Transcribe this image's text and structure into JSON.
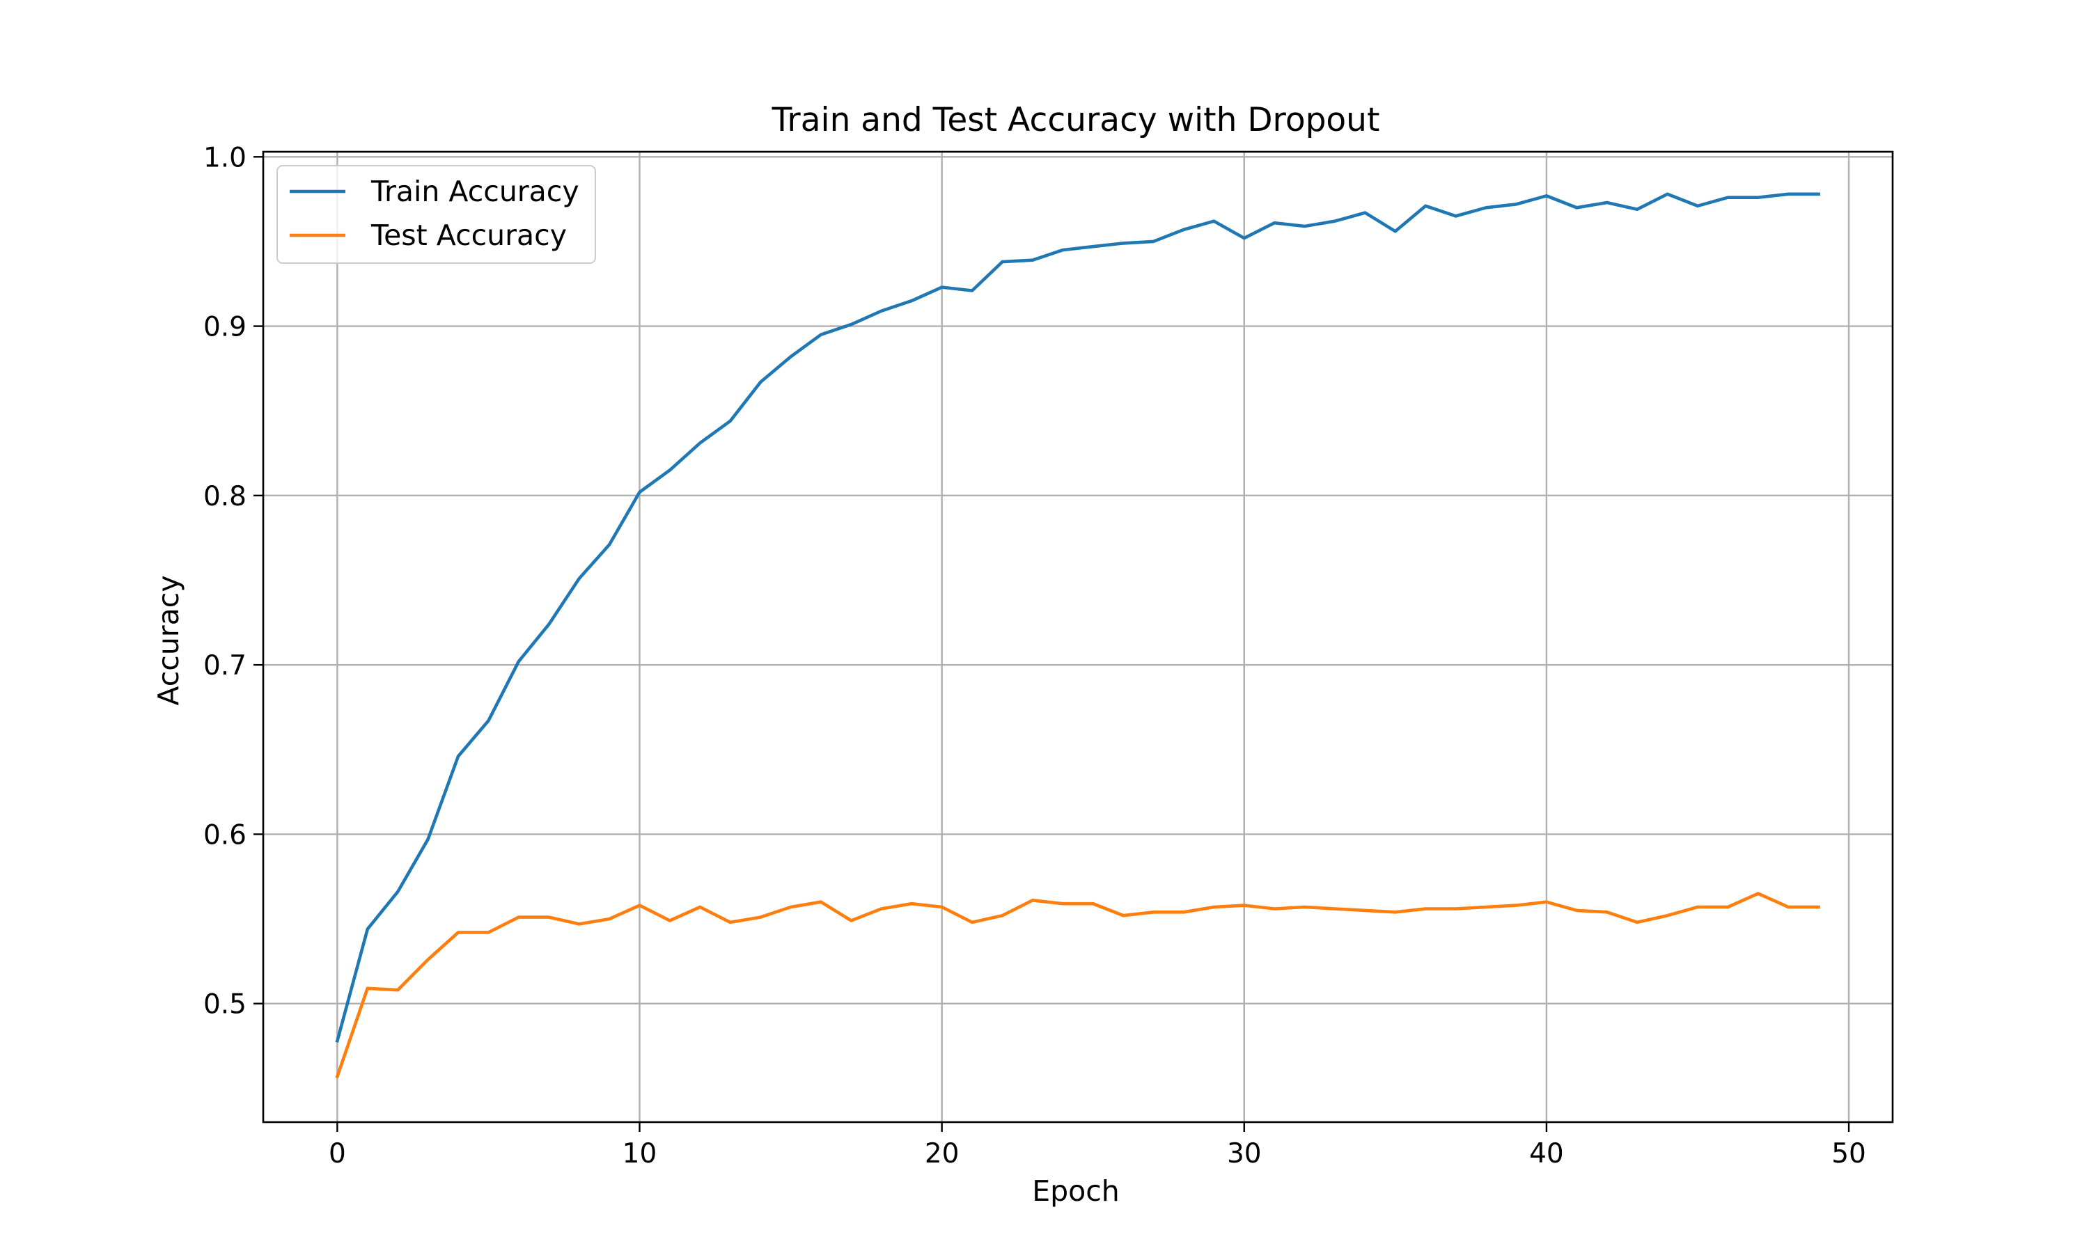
{
  "chart_data": {
    "type": "line",
    "title": "Train and Test Accuracy with Dropout",
    "xlabel": "Epoch",
    "ylabel": "Accuracy",
    "xlim": [
      -2.45,
      51.45
    ],
    "ylim": [
      0.43,
      1.003
    ],
    "grid": true,
    "legend_position": "top-left",
    "x_ticks": [
      0,
      10,
      20,
      30,
      40,
      50
    ],
    "x_tick_labels": [
      "0",
      "10",
      "20",
      "30",
      "40",
      "50"
    ],
    "y_ticks": [
      0.5,
      0.6,
      0.7,
      0.8,
      0.9,
      1.0
    ],
    "y_tick_labels": [
      "0.5",
      "0.6",
      "0.7",
      "0.8",
      "0.9",
      "1.0"
    ],
    "x": [
      0,
      1,
      2,
      3,
      4,
      5,
      6,
      7,
      8,
      9,
      10,
      11,
      12,
      13,
      14,
      15,
      16,
      17,
      18,
      19,
      20,
      21,
      22,
      23,
      24,
      25,
      26,
      27,
      28,
      29,
      30,
      31,
      32,
      33,
      34,
      35,
      36,
      37,
      38,
      39,
      40,
      41,
      42,
      43,
      44,
      45,
      46,
      47,
      48,
      49
    ],
    "series": [
      {
        "name": "Train Accuracy",
        "color": "#1f77b4",
        "values": [
          0.478,
          0.544,
          0.566,
          0.597,
          0.646,
          0.667,
          0.702,
          0.724,
          0.751,
          0.771,
          0.802,
          0.815,
          0.831,
          0.844,
          0.867,
          0.882,
          0.895,
          0.901,
          0.909,
          0.915,
          0.923,
          0.921,
          0.938,
          0.939,
          0.945,
          0.947,
          0.949,
          0.95,
          0.957,
          0.962,
          0.952,
          0.961,
          0.959,
          0.962,
          0.967,
          0.956,
          0.971,
          0.965,
          0.97,
          0.972,
          0.977,
          0.97,
          0.973,
          0.969,
          0.978,
          0.971,
          0.976,
          0.976,
          0.978,
          0.978
        ]
      },
      {
        "name": "Test Accuracy",
        "color": "#ff7f0e",
        "values": [
          0.457,
          0.509,
          0.508,
          0.526,
          0.542,
          0.542,
          0.551,
          0.551,
          0.547,
          0.55,
          0.558,
          0.549,
          0.557,
          0.548,
          0.551,
          0.557,
          0.56,
          0.549,
          0.556,
          0.559,
          0.557,
          0.548,
          0.552,
          0.561,
          0.559,
          0.559,
          0.552,
          0.554,
          0.554,
          0.557,
          0.558,
          0.556,
          0.557,
          0.556,
          0.555,
          0.554,
          0.556,
          0.556,
          0.557,
          0.558,
          0.56,
          0.555,
          0.554,
          0.548,
          0.552,
          0.557,
          0.557,
          0.565,
          0.557,
          0.557
        ]
      }
    ]
  }
}
